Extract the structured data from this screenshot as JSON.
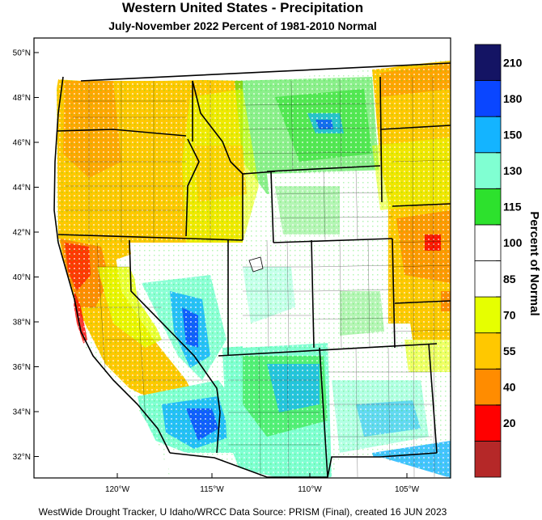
{
  "title": "Western United States - Precipitation",
  "subtitle": "July-November 2022  Percent of 1981-2010 Normal",
  "footer": "WestWide Drought Tracker, U Idaho/WRCC Data Source: PRISM (Final), created 16 JUN 2023",
  "colorbar": {
    "title": "Percent of Normal",
    "bins": [
      {
        "color": "#b52828",
        "label": ""
      },
      {
        "color": "#ff0000",
        "label": "20"
      },
      {
        "color": "#ff8c00",
        "label": "40"
      },
      {
        "color": "#ffc800",
        "label": "55"
      },
      {
        "color": "#e6ff00",
        "label": "70"
      },
      {
        "color": "#ffffff",
        "label": "85"
      },
      {
        "color": "#ffffff",
        "label": "100"
      },
      {
        "color": "#2de12d",
        "label": "115"
      },
      {
        "color": "#80ffd2",
        "label": "130"
      },
      {
        "color": "#14b4ff",
        "label": "150"
      },
      {
        "color": "#0a46ff",
        "label": "180"
      },
      {
        "color": "#141464",
        "label": "210"
      }
    ]
  },
  "latitude_ticks": [
    "50°N",
    "48°N",
    "46°N",
    "44°N",
    "42°N",
    "40°N",
    "38°N",
    "36°N",
    "34°N",
    "32°N"
  ],
  "longitude_ticks": [
    "120°W",
    "115°W",
    "110°W",
    "105°W"
  ]
}
